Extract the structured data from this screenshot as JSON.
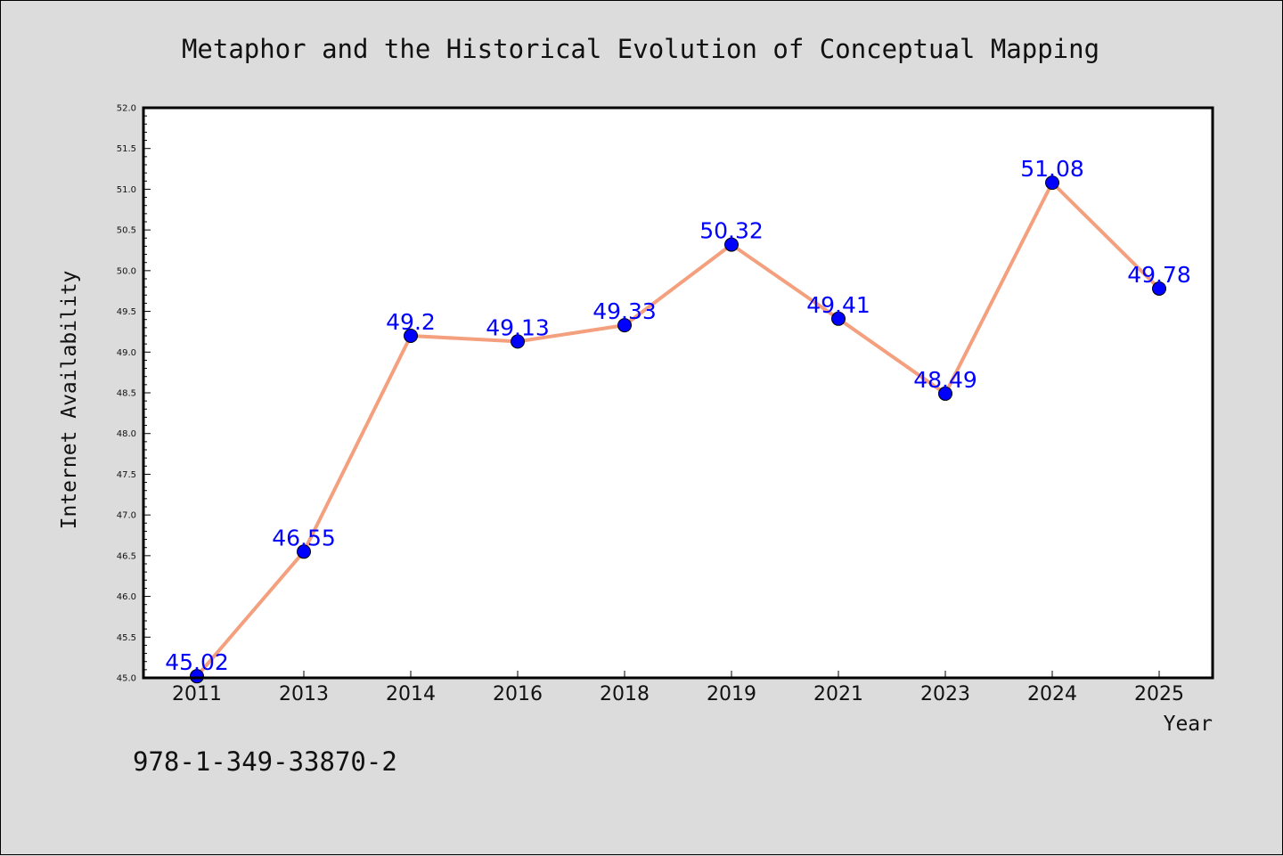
{
  "chart_data": {
    "type": "line",
    "title": "Metaphor and the Historical Evolution of Conceptual Mapping",
    "xlabel": "Year",
    "ylabel": "Internet Availability",
    "categories": [
      "2011",
      "2013",
      "2014",
      "2016",
      "2018",
      "2019",
      "2021",
      "2023",
      "2024",
      "2025"
    ],
    "series": [
      {
        "values": [
          45.02,
          46.55,
          49.2,
          49.13,
          49.33,
          50.32,
          49.41,
          48.49,
          51.08,
          49.78
        ],
        "data_labels": [
          "45.02",
          "46.55",
          "49.2",
          "49.13",
          "49.33",
          "50.32",
          "49.41",
          "48.49",
          "51.08",
          "49.78"
        ]
      }
    ],
    "ylim": [
      45.0,
      52.0
    ],
    "yticks": [
      "45.0",
      "45.5",
      "46.0",
      "46.5",
      "47.0",
      "47.5",
      "48.0",
      "48.5",
      "49.0",
      "49.5",
      "50.0",
      "50.5",
      "51.0",
      "51.5",
      "52.0"
    ],
    "grid": false,
    "colors": {
      "line": "#f4a07e",
      "marker": "#0000ff",
      "label": "#0000ff",
      "background": "#dcdcdc",
      "plot_area": "#ffffff"
    }
  },
  "footer": {
    "isbn": "978-1-349-33870-2"
  }
}
